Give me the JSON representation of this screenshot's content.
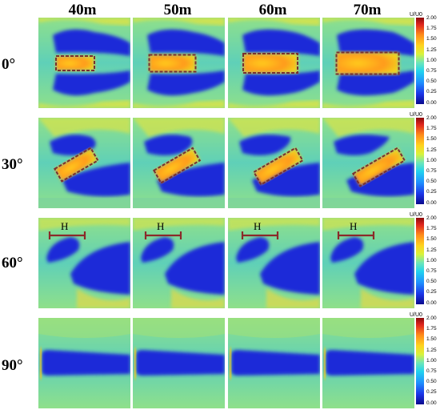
{
  "columns": [
    "40m",
    "50m",
    "60m",
    "70m"
  ],
  "rows": [
    "0°",
    "30°",
    "60°",
    "90°"
  ],
  "colorbar": {
    "title": "U/U0",
    "ticks": [
      "2.00",
      "1.75",
      "1.50",
      "1.25",
      "1.00",
      "0.75",
      "0.50",
      "0.25",
      "0.00"
    ]
  },
  "annotation_label": "H",
  "colors": {
    "background_field": "#7fdc9a",
    "low_speed": "#1a2ad8",
    "high_speed": "#ffb020",
    "box_outline": "#7a3030",
    "h_bar": "#8b2a2a"
  }
}
